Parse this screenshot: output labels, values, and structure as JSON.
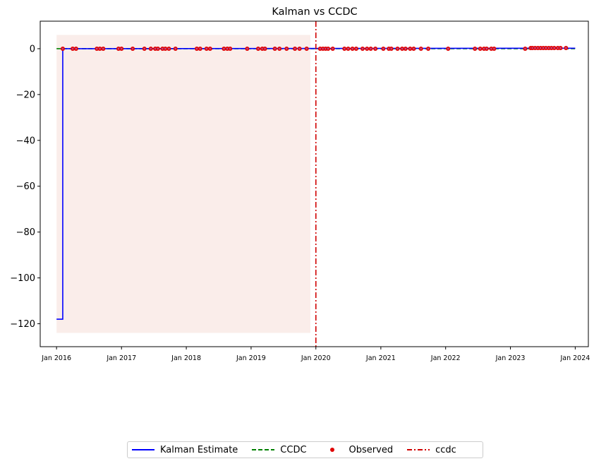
{
  "chart_data": {
    "type": "line",
    "title": "Kalman vs CCDC",
    "xlabel": "",
    "ylabel": "",
    "xlim": [
      "2015-10-01",
      "2024-03-15"
    ],
    "ylim": [
      -130,
      12
    ],
    "x_ticks": [
      {
        "date": "2016-01-01",
        "label": "Jan 2016"
      },
      {
        "date": "2017-01-01",
        "label": "Jan 2017"
      },
      {
        "date": "2018-01-01",
        "label": "Jan 2018"
      },
      {
        "date": "2019-01-01",
        "label": "Jan 2019"
      },
      {
        "date": "2020-01-01",
        "label": "Jan 2020"
      },
      {
        "date": "2021-01-01",
        "label": "Jan 2021"
      },
      {
        "date": "2022-01-01",
        "label": "Jan 2022"
      },
      {
        "date": "2023-01-01",
        "label": "Jan 2023"
      },
      {
        "date": "2024-01-01",
        "label": "Jan 2024"
      }
    ],
    "y_ticks": [
      0,
      -20,
      -40,
      -60,
      -80,
      -100,
      -120
    ],
    "y_tick_labels": [
      "0",
      "−20",
      "−40",
      "−60",
      "−80",
      "−100",
      "−120"
    ],
    "shaded_region": {
      "x": [
        "2016-01-01",
        "2019-12-01"
      ],
      "y": [
        -124,
        6
      ],
      "color": "#f8e6e1"
    },
    "legend_placement": "bottom-center, below plot",
    "series": [
      {
        "name": "Kalman Estimate",
        "style": "solid",
        "color": "#0000ff",
        "points": [
          {
            "x": "2016-01-01",
            "y": -118
          },
          {
            "x": "2016-02-05",
            "y": -118
          },
          {
            "x": "2016-02-05",
            "y": 0
          },
          {
            "x": "2024-01-01",
            "y": 0.2
          }
        ]
      },
      {
        "name": "CCDC",
        "style": "dashed",
        "color": "#008000",
        "points": [
          {
            "x": "2016-01-01",
            "y": 0
          },
          {
            "x": "2024-01-01",
            "y": 0
          }
        ]
      },
      {
        "name": "Observed",
        "style": "scatter",
        "color": "#e00000",
        "x": [
          "2016-02-05",
          "2016-04-01",
          "2016-04-20",
          "2016-08-15",
          "2016-09-01",
          "2016-09-20",
          "2016-12-15",
          "2017-01-01",
          "2017-03-05",
          "2017-05-10",
          "2017-06-15",
          "2017-07-10",
          "2017-07-25",
          "2017-08-20",
          "2017-09-05",
          "2017-09-25",
          "2017-11-01",
          "2018-03-01",
          "2018-03-20",
          "2018-04-25",
          "2018-05-15",
          "2018-08-01",
          "2018-08-20",
          "2018-09-05",
          "2018-12-10",
          "2019-02-10",
          "2019-03-05",
          "2019-03-20",
          "2019-05-15",
          "2019-06-10",
          "2019-07-20",
          "2019-09-05",
          "2019-10-01",
          "2019-11-10",
          "2020-01-25",
          "2020-02-10",
          "2020-02-25",
          "2020-03-10",
          "2020-04-05",
          "2020-06-10",
          "2020-07-01",
          "2020-07-25",
          "2020-08-15",
          "2020-09-20",
          "2020-10-15",
          "2020-11-05",
          "2020-12-01",
          "2021-01-15",
          "2021-02-15",
          "2021-03-01",
          "2021-04-05",
          "2021-05-01",
          "2021-05-20",
          "2021-06-15",
          "2021-07-05",
          "2021-08-15",
          "2021-09-25",
          "2022-01-15",
          "2022-06-15",
          "2022-07-15",
          "2022-08-05",
          "2022-08-20",
          "2022-09-15",
          "2022-10-01",
          "2023-03-25",
          "2023-04-25",
          "2023-05-05",
          "2023-05-20",
          "2023-06-05",
          "2023-06-20",
          "2023-07-05",
          "2023-07-20",
          "2023-08-05",
          "2023-08-20",
          "2023-09-05",
          "2023-09-25",
          "2023-10-10",
          "2023-11-10"
        ],
        "y": [
          0,
          0,
          0,
          0,
          0,
          0,
          0,
          0,
          0,
          0,
          0,
          0,
          0,
          0,
          0,
          0,
          0,
          0,
          0,
          0,
          0,
          0,
          0,
          0,
          0,
          0,
          0,
          0,
          0,
          0,
          0,
          0,
          0,
          0,
          0,
          0,
          0,
          0,
          0,
          0,
          0,
          0,
          0,
          0,
          0,
          0,
          0,
          0,
          0,
          0,
          0,
          0,
          0,
          0,
          0,
          0,
          0,
          0,
          0,
          0,
          0,
          0,
          0,
          0,
          0,
          0.3,
          0.3,
          0.3,
          0.3,
          0.3,
          0.3,
          0.3,
          0.3,
          0.3,
          0.3,
          0.3,
          0.3,
          0.3
        ]
      },
      {
        "name": "ccdc",
        "style": "dash-dot vertical line",
        "color": "#d00000",
        "x": "2020-01-01"
      }
    ]
  }
}
